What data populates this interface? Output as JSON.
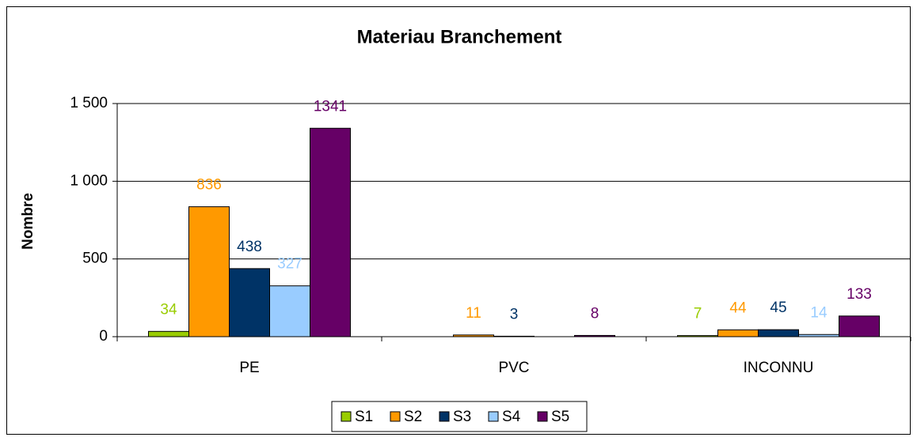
{
  "chart_data": {
    "type": "bar",
    "title": "Materiau Branchement",
    "y_label": "Nombre",
    "categories": [
      "PE",
      "PVC",
      "INCONNU"
    ],
    "series": [
      {
        "name": "S1",
        "color": "#99cc00",
        "values": [
          34,
          null,
          7
        ]
      },
      {
        "name": "S2",
        "color": "#ff9900",
        "values": [
          836,
          11,
          44
        ]
      },
      {
        "name": "S3",
        "color": "#003366",
        "values": [
          438,
          3,
          45
        ]
      },
      {
        "name": "S4",
        "color": "#99ccff",
        "values": [
          327,
          null,
          14
        ]
      },
      {
        "name": "S5",
        "color": "#660066",
        "values": [
          1341,
          8,
          133
        ]
      }
    ],
    "ylim": [
      0,
      1500
    ],
    "yticks": [
      0,
      500,
      {
        "value": 1000,
        "label": "1 000"
      },
      {
        "value": 1500,
        "label": "1 500"
      }
    ],
    "grid": true,
    "legend": "bottom"
  }
}
